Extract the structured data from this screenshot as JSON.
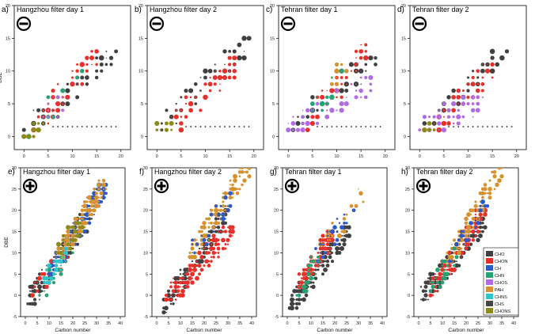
{
  "colors": {
    "CHO": "#404040",
    "CHON": "#e8302a",
    "CH": "#2a59c9",
    "CHN": "#26a372",
    "CHOS": "#b26ce3",
    "PAH": "#d6922e",
    "CHNS": "#2ec4c8",
    "CHS": "#454545",
    "CHONS": "#8d8a1c"
  },
  "legend": {
    "entries": [
      "CHO",
      "CHON",
      "CH",
      "CHN",
      "CHOS",
      "PAH",
      "CHNS",
      "CHS",
      "CHONS"
    ]
  },
  "chart_data": [
    {
      "type": "scatter",
      "letter": "a)",
      "title": "Hangzhou filter day 1",
      "mode": "negative",
      "sign": "minus",
      "xlabel": "",
      "ylabel": "DBE",
      "xlim": [
        -2,
        22
      ],
      "ylim": [
        -2,
        20
      ],
      "xticks": [
        0,
        5,
        10,
        15,
        20
      ],
      "yticks": [
        0,
        5,
        10,
        15,
        20
      ],
      "series": [
        {
          "name": "CHO",
          "values": "bulk",
          "x_range": [
            0,
            19
          ],
          "y_range": [
            1,
            13
          ]
        },
        {
          "name": "CHON",
          "values": "bulk",
          "x_range": [
            2,
            15
          ],
          "y_range": [
            1,
            13
          ]
        },
        {
          "name": "CHN",
          "values": "few",
          "x_range": [
            0,
            12
          ],
          "y_range": [
            0,
            10
          ]
        },
        {
          "name": "CHOS",
          "values": "few",
          "x_range": [
            4,
            8
          ],
          "y_range": [
            3,
            6
          ]
        },
        {
          "name": "CHONS",
          "values": "few",
          "x_range": [
            0,
            4
          ],
          "y_range": [
            0,
            2
          ]
        }
      ]
    },
    {
      "type": "scatter",
      "letter": "b)",
      "title": "Hangzhou filter day 2",
      "mode": "negative",
      "sign": "minus",
      "xlabel": "",
      "ylabel": "",
      "xlim": [
        -2,
        22
      ],
      "ylim": [
        -2,
        20
      ],
      "xticks": [
        0,
        5,
        10,
        15,
        20
      ],
      "yticks": [
        0,
        5,
        10,
        15,
        20
      ],
      "series": [
        {
          "name": "CHO",
          "values": "bulk",
          "x_range": [
            1,
            19
          ],
          "y_range": [
            1,
            15
          ]
        },
        {
          "name": "CHON",
          "values": "bulk",
          "x_range": [
            2,
            17
          ],
          "y_range": [
            1,
            12
          ]
        },
        {
          "name": "CHONS",
          "values": "few",
          "x_range": [
            0,
            4
          ],
          "y_range": [
            1,
            2
          ]
        }
      ]
    },
    {
      "type": "scatter",
      "letter": "c)",
      "title": "Tehran filter day 1",
      "mode": "negative",
      "sign": "minus",
      "xlabel": "",
      "ylabel": "",
      "xlim": [
        -2,
        22
      ],
      "ylim": [
        -2,
        20
      ],
      "xticks": [
        0,
        5,
        10,
        15,
        20
      ],
      "yticks": [
        0,
        5,
        10,
        15,
        20
      ],
      "series": [
        {
          "name": "CHO",
          "values": "bulk",
          "x_range": [
            1,
            18
          ],
          "y_range": [
            1,
            12
          ]
        },
        {
          "name": "CHON",
          "values": "bulk",
          "x_range": [
            3,
            17
          ],
          "y_range": [
            1,
            14
          ]
        },
        {
          "name": "CHOS",
          "values": "bulk",
          "x_range": [
            0,
            18
          ],
          "y_range": [
            1,
            9
          ]
        },
        {
          "name": "CHN",
          "values": "few",
          "x_range": [
            4,
            11
          ],
          "y_range": [
            2,
            10
          ]
        },
        {
          "name": "PAH",
          "values": "few",
          "x_range": [
            9,
            12
          ],
          "y_range": [
            8,
            11
          ]
        }
      ]
    },
    {
      "type": "scatter",
      "letter": "d)",
      "title": "Tehran filter day 2",
      "mode": "negative",
      "sign": "minus",
      "xlabel": "",
      "ylabel": "",
      "xlim": [
        -2,
        22
      ],
      "ylim": [
        -2,
        20
      ],
      "xticks": [
        0,
        5,
        10,
        15,
        20
      ],
      "yticks": [
        0,
        5,
        10,
        15,
        20
      ],
      "series": [
        {
          "name": "CHO",
          "values": "bulk",
          "x_range": [
            1,
            18
          ],
          "y_range": [
            1,
            13
          ]
        },
        {
          "name": "CHON",
          "values": "bulk",
          "x_range": [
            3,
            15
          ],
          "y_range": [
            1,
            11
          ]
        },
        {
          "name": "CHOS",
          "values": "bulk",
          "x_range": [
            0,
            13
          ],
          "y_range": [
            1,
            6
          ]
        },
        {
          "name": "CHONS",
          "values": "few",
          "x_range": [
            0,
            3
          ],
          "y_range": [
            1,
            2
          ]
        }
      ]
    },
    {
      "type": "scatter",
      "letter": "e)",
      "title": "Hangzhou filter day 1",
      "mode": "positive",
      "sign": "plus",
      "xlabel": "Carbon number",
      "ylabel": "DBE",
      "xlim": [
        -2,
        42
      ],
      "ylim": [
        -5,
        30
      ],
      "xticks": [
        0,
        5,
        10,
        15,
        20,
        25,
        30,
        35,
        40
      ],
      "yticks": [
        -5,
        0,
        5,
        10,
        15,
        20,
        25,
        30
      ],
      "series": [
        {
          "name": "CHO",
          "values": "bulk",
          "x_range": [
            1,
            28
          ],
          "y_range": [
            -2,
            20
          ]
        },
        {
          "name": "CHON",
          "values": "few",
          "x_range": [
            3,
            22
          ],
          "y_range": [
            -1,
            14
          ]
        },
        {
          "name": "CH",
          "values": "bulk",
          "x_range": [
            10,
            34
          ],
          "y_range": [
            5,
            26
          ]
        },
        {
          "name": "CHN",
          "values": "few",
          "x_range": [
            6,
            20
          ],
          "y_range": [
            0,
            12
          ]
        },
        {
          "name": "PAH",
          "values": "bulk",
          "x_range": [
            13,
            34
          ],
          "y_range": [
            8,
            27
          ]
        },
        {
          "name": "CHNS",
          "values": "few",
          "x_range": [
            8,
            18
          ],
          "y_range": [
            3,
            11
          ]
        },
        {
          "name": "CHONS",
          "values": "few",
          "x_range": [
            12,
            24
          ],
          "y_range": [
            10,
            17
          ]
        }
      ]
    },
    {
      "type": "scatter",
      "letter": "f)",
      "title": "Hangzhou filter day 2",
      "mode": "positive",
      "sign": "plus",
      "xlabel": "Carbon number",
      "ylabel": "",
      "xlim": [
        -2,
        42
      ],
      "ylim": [
        -5,
        30
      ],
      "xticks": [
        0,
        5,
        10,
        15,
        20,
        25,
        30,
        35,
        40
      ],
      "yticks": [
        -5,
        0,
        5,
        10,
        15,
        20,
        25,
        30
      ],
      "series": [
        {
          "name": "CHO",
          "values": "bulk",
          "x_range": [
            2,
            30
          ],
          "y_range": [
            -4,
            20
          ]
        },
        {
          "name": "CHON",
          "values": "bulk",
          "x_range": [
            4,
            32
          ],
          "y_range": [
            -1,
            16
          ]
        },
        {
          "name": "PAH",
          "values": "bulk",
          "x_range": [
            14,
            40
          ],
          "y_range": [
            9,
            32
          ]
        },
        {
          "name": "CH",
          "values": "few",
          "x_range": [
            15,
            32
          ],
          "y_range": [
            10,
            24
          ]
        }
      ]
    },
    {
      "type": "scatter",
      "letter": "g)",
      "title": "Tehran filter day 1",
      "mode": "positive",
      "sign": "plus",
      "xlabel": "Carbon number",
      "ylabel": "",
      "xlim": [
        -2,
        42
      ],
      "ylim": [
        -5,
        30
      ],
      "xticks": [
        0,
        5,
        10,
        15,
        20,
        25,
        30,
        35,
        40
      ],
      "yticks": [
        -5,
        0,
        5,
        10,
        15,
        20,
        25,
        30
      ],
      "series": [
        {
          "name": "CHO",
          "values": "bulk",
          "x_range": [
            1,
            26
          ],
          "y_range": [
            -3,
            16
          ]
        },
        {
          "name": "CHON",
          "values": "bulk",
          "x_range": [
            5,
            19
          ],
          "y_range": [
            2,
            15
          ]
        },
        {
          "name": "PAH",
          "values": "few",
          "x_range": [
            12,
            32
          ],
          "y_range": [
            8,
            25
          ]
        },
        {
          "name": "CH",
          "values": "few",
          "x_range": [
            12,
            28
          ],
          "y_range": [
            8,
            20
          ]
        },
        {
          "name": "CHN",
          "values": "few",
          "x_range": [
            4,
            14
          ],
          "y_range": [
            0,
            10
          ]
        }
      ]
    },
    {
      "type": "scatter",
      "letter": "h)",
      "title": "Tehran filter day 2",
      "mode": "positive",
      "sign": "plus",
      "xlabel": "Carbon number",
      "ylabel": "",
      "xlim": [
        -2,
        42
      ],
      "ylim": [
        -5,
        30
      ],
      "xticks": [
        0,
        5,
        10,
        15,
        20,
        25,
        30,
        35,
        40
      ],
      "yticks": [
        -5,
        0,
        5,
        10,
        15,
        20,
        25,
        30
      ],
      "series": [
        {
          "name": "CHO",
          "values": "bulk",
          "x_range": [
            1,
            28
          ],
          "y_range": [
            -1,
            18
          ]
        },
        {
          "name": "CHON",
          "values": "bulk",
          "x_range": [
            4,
            28
          ],
          "y_range": [
            0,
            20
          ]
        },
        {
          "name": "PAH",
          "values": "bulk",
          "x_range": [
            12,
            36
          ],
          "y_range": [
            8,
            31
          ]
        },
        {
          "name": "CH",
          "values": "few",
          "x_range": [
            12,
            30
          ],
          "y_range": [
            8,
            22
          ]
        },
        {
          "name": "CHN",
          "values": "few",
          "x_range": [
            5,
            16
          ],
          "y_range": [
            1,
            11
          ]
        }
      ]
    }
  ]
}
